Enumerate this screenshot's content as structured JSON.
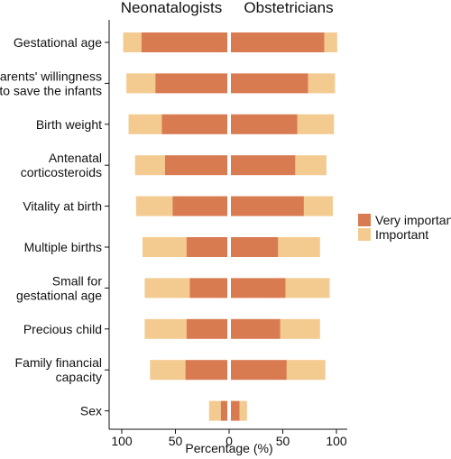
{
  "chart_data": {
    "type": "bar",
    "orientation": "horizontal",
    "layout": "diverging",
    "panels": [
      "Neonatalogists",
      "Obstetricians"
    ],
    "categories": [
      [
        "Gestational age"
      ],
      [
        "Parents' willingness",
        "to save the infants"
      ],
      [
        "Birth weight"
      ],
      [
        "Antenatal",
        "corticosteroids"
      ],
      [
        "Vitality at birth"
      ],
      [
        "Multiple births"
      ],
      [
        "Small for",
        "gestational age"
      ],
      [
        "Precious child"
      ],
      [
        "Family financial",
        "capacity"
      ],
      [
        "Sex"
      ]
    ],
    "series": [
      {
        "name": "Very important",
        "color": "#d97b51",
        "neonatologists": [
          80,
          67,
          61,
          58,
          51,
          38,
          35,
          38,
          39,
          6
        ],
        "obstetricians": [
          87,
          72,
          62,
          60,
          68,
          44,
          51,
          46,
          52,
          8
        ]
      },
      {
        "name": "Important",
        "color": "#f3cb91",
        "neonatologists": [
          17,
          27,
          31,
          28,
          34,
          41,
          42,
          39,
          33,
          11
        ],
        "obstetricians": [
          12,
          25,
          34,
          29,
          27,
          39,
          41,
          37,
          36,
          7
        ]
      }
    ],
    "xlabel": "Percentage (%)",
    "xticks": [
      "100",
      "50",
      "0",
      "50",
      "100"
    ],
    "xlim": [
      -100,
      100
    ],
    "legend_position": "right",
    "grid": false
  }
}
